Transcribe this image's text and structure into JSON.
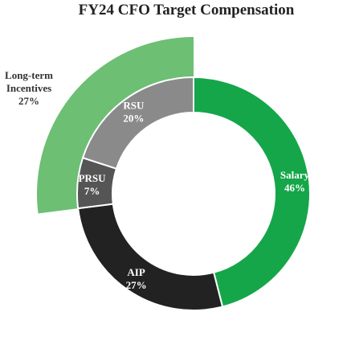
{
  "chart_data": {
    "type": "pie",
    "title": "FY24 CFO Target Compensation",
    "inner_ring": {
      "slices": [
        {
          "name": "Salary",
          "value": 46,
          "label": "46%",
          "color": "#15a64a"
        },
        {
          "name": "AIP",
          "value": 27,
          "label": "27%",
          "color": "#222222"
        },
        {
          "name": "PRSU",
          "value": 7,
          "label": "7%",
          "color": "#555555"
        },
        {
          "name": "RSU",
          "value": 20,
          "label": "20%",
          "color": "#8a8a8a"
        }
      ]
    },
    "outer_ring": {
      "slices": [
        {
          "name_lines": [
            "Long-term",
            "Incentives"
          ],
          "value": 27,
          "label": "27%",
          "color": "#6dbf73",
          "spans": [
            "PRSU",
            "RSU"
          ]
        }
      ]
    }
  }
}
